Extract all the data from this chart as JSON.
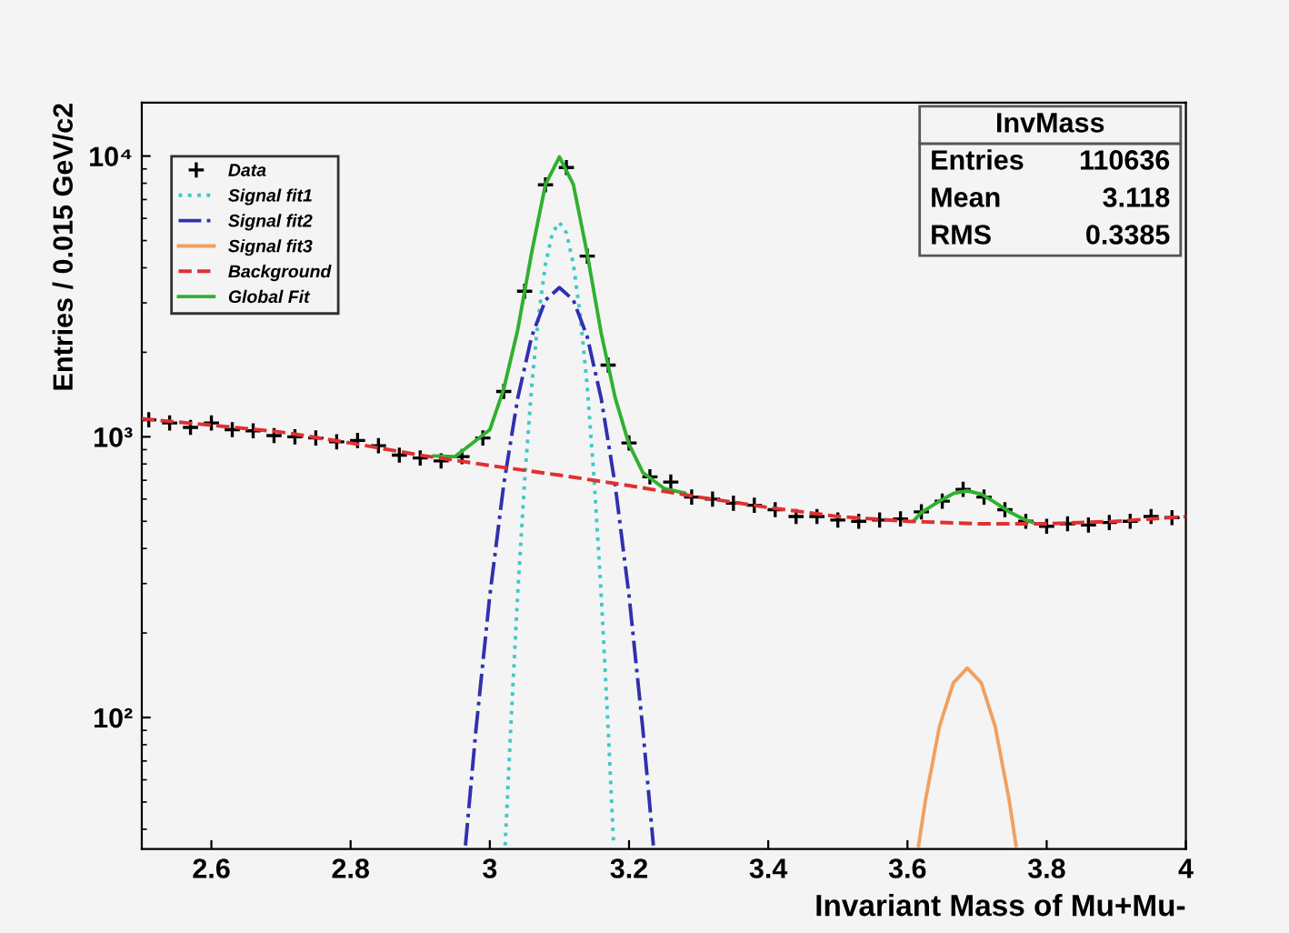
{
  "chart_data": {
    "type": "line",
    "xlabel": "Invariant Mass of Mu+Mu-",
    "ylabel": "Entries / 0.015 GeV/c2",
    "log": "y",
    "xlim": [
      2.5,
      4.0
    ],
    "xticks": [
      2.6,
      2.8,
      3,
      3.2,
      3.4,
      3.6,
      3.8,
      4
    ],
    "ylim": [
      34,
      15500
    ],
    "yticks": [
      {
        "value": 100,
        "label": "10²"
      },
      {
        "value": 1000,
        "label": "10³"
      },
      {
        "value": 10000,
        "label": "10⁴"
      }
    ],
    "grid": false,
    "legend": "top left",
    "annotations": [
      "InvMass",
      "Entries",
      "110636",
      "Mean",
      "3.118",
      "RMS",
      "0.3385"
    ],
    "series": [
      {
        "name": "Data",
        "type": "scatter",
        "marker": "cross",
        "color": "#000000",
        "x": [
          2.51,
          2.54,
          2.57,
          2.6,
          2.63,
          2.66,
          2.69,
          2.72,
          2.75,
          2.78,
          2.81,
          2.84,
          2.87,
          2.9,
          2.93,
          2.96,
          2.99,
          3.02,
          3.05,
          3.08,
          3.11,
          3.14,
          3.17,
          3.2,
          3.23,
          3.26,
          3.29,
          3.32,
          3.35,
          3.38,
          3.41,
          3.44,
          3.47,
          3.5,
          3.53,
          3.56,
          3.59,
          3.62,
          3.65,
          3.68,
          3.71,
          3.74,
          3.77,
          3.8,
          3.83,
          3.86,
          3.89,
          3.92,
          3.95,
          3.98
        ],
        "values": [
          1150,
          1120,
          1080,
          1120,
          1060,
          1050,
          1010,
          1000,
          990,
          960,
          970,
          930,
          860,
          840,
          820,
          850,
          990,
          1450,
          3300,
          7900,
          9100,
          4400,
          1800,
          950,
          720,
          690,
          610,
          600,
          580,
          570,
          550,
          520,
          520,
          505,
          500,
          505,
          510,
          540,
          590,
          650,
          610,
          550,
          500,
          480,
          490,
          485,
          495,
          500,
          520,
          515
        ]
      },
      {
        "name": "Signal fit1",
        "line_style": "dotted",
        "color": "#40c8c8",
        "x": [
          3.022,
          3.03,
          3.04,
          3.05,
          3.06,
          3.07,
          3.08,
          3.09,
          3.1,
          3.11,
          3.12,
          3.13,
          3.14,
          3.15,
          3.16,
          3.17,
          3.178
        ],
        "values": [
          35,
          91,
          275,
          698,
          1500,
          2700,
          4130,
          5330,
          5800,
          5330,
          4130,
          2700,
          1500,
          698,
          275,
          91,
          35
        ]
      },
      {
        "name": "Signal fit2",
        "line_style": "dashdot",
        "color": "#3030b0",
        "x": [
          2.965,
          2.98,
          3.0,
          3.02,
          3.04,
          3.06,
          3.08,
          3.1,
          3.12,
          3.14,
          3.16,
          3.18,
          3.2,
          3.22,
          3.235
        ],
        "values": [
          35,
          90,
          272,
          676,
          1370,
          2270,
          3070,
          3400,
          3070,
          2270,
          1370,
          676,
          272,
          90,
          35
        ]
      },
      {
        "name": "Signal fit3",
        "line_style": "solid",
        "color": "#f0a060",
        "x": [
          3.616,
          3.626,
          3.646,
          3.666,
          3.686,
          3.706,
          3.726,
          3.746,
          3.756
        ],
        "values": [
          35,
          51,
          93,
          133,
          150,
          133,
          93,
          51,
          35
        ]
      },
      {
        "name": "Background",
        "line_style": "dashed",
        "color": "#e03030",
        "x": [
          2.5,
          2.6,
          2.7,
          2.8,
          2.9,
          3.0,
          3.1,
          3.2,
          3.3,
          3.4,
          3.5,
          3.6,
          3.7,
          3.8,
          3.9,
          4.0
        ],
        "values": [
          1160,
          1100,
          1040,
          950,
          860,
          790,
          730,
          670,
          610,
          560,
          520,
          500,
          490,
          490,
          500,
          520
        ]
      },
      {
        "name": "Global Fit",
        "line_style": "solid",
        "color": "#30b030",
        "x": [
          2.92,
          2.95,
          3.0,
          3.02,
          3.04,
          3.06,
          3.08,
          3.1,
          3.12,
          3.14,
          3.16,
          3.18,
          3.2,
          3.22,
          3.25,
          3.28,
          3.45,
          3.61,
          3.62,
          3.646,
          3.666,
          3.686,
          3.706,
          3.726,
          3.746,
          3.77,
          3.78
        ],
        "values": [
          855,
          850,
          1060,
          1480,
          2400,
          4520,
          7940,
          9930,
          7920,
          4480,
          2340,
          1380,
          940,
          745,
          655,
          630,
          null,
          505,
          538,
          590,
          628,
          642,
          625,
          583,
          541,
          505,
          495
        ]
      }
    ]
  }
}
